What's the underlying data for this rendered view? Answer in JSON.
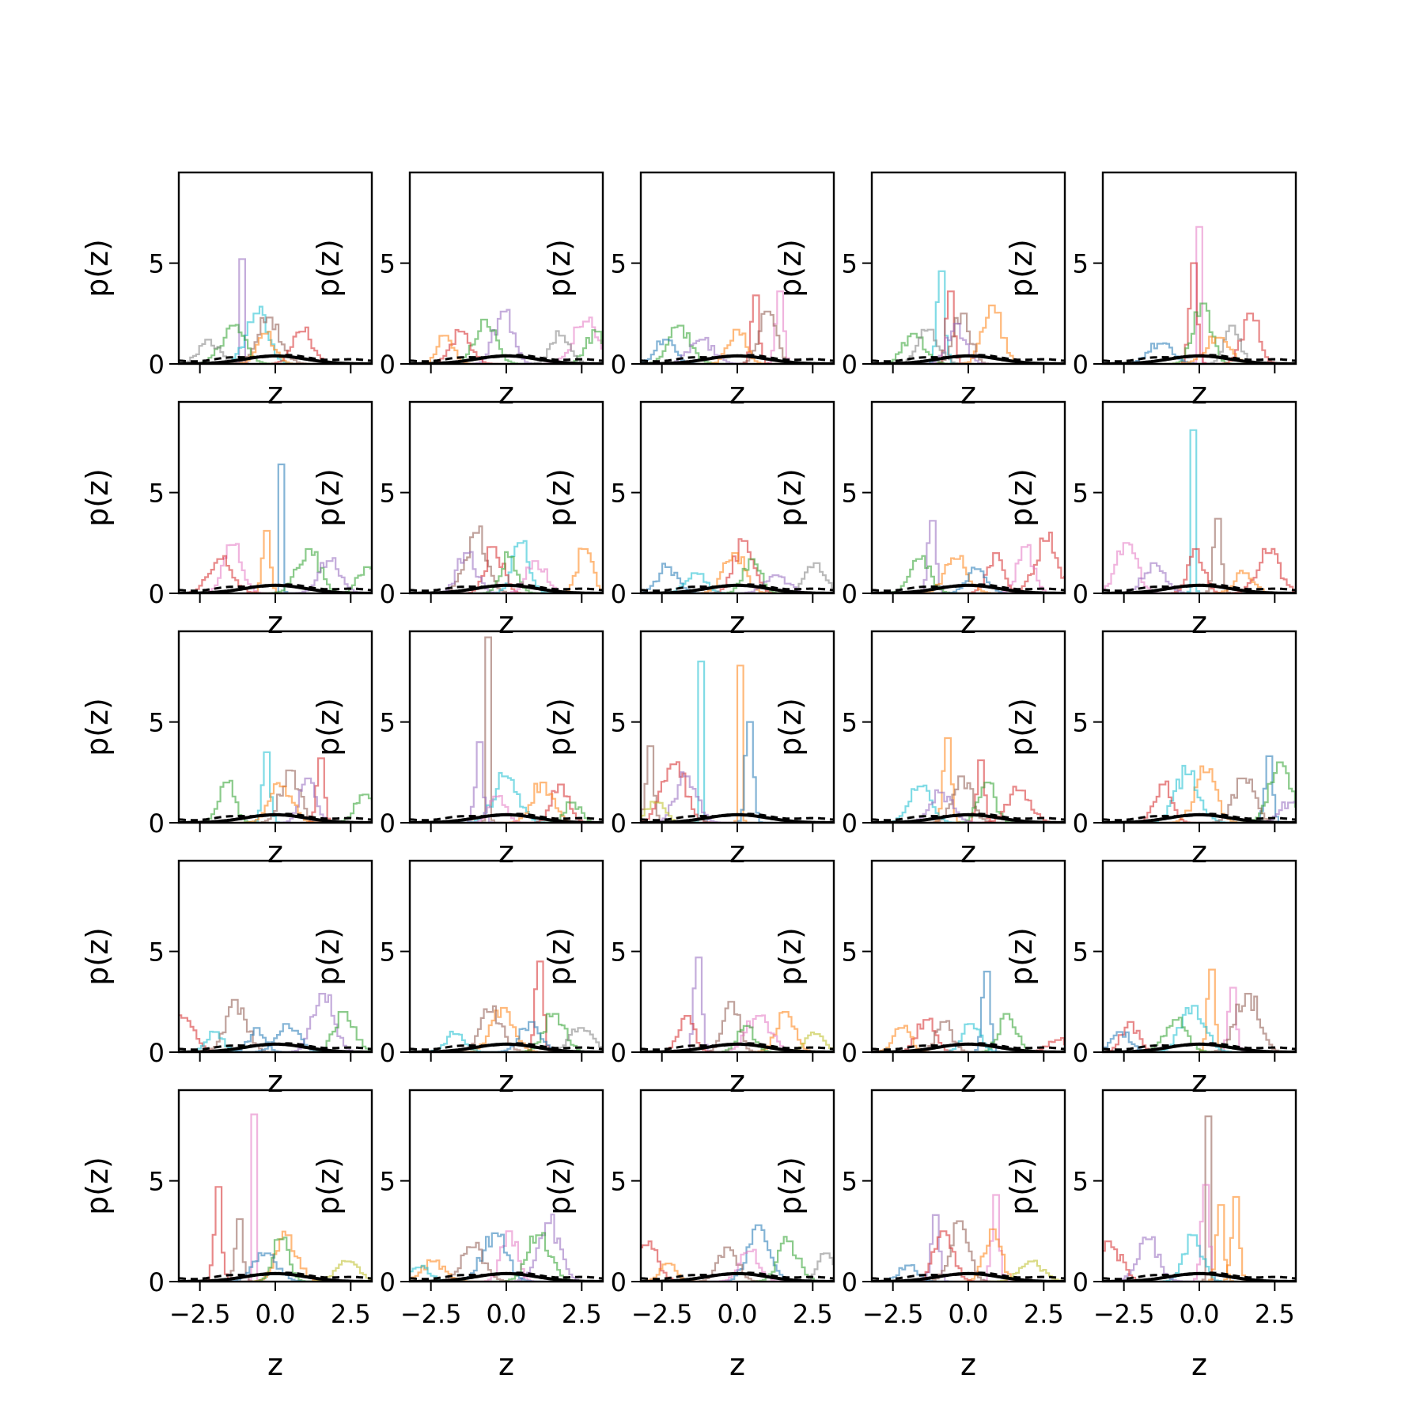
{
  "chart_data": {
    "type": "line",
    "layout": "5x5 grid of small-multiple histogram panels",
    "xlabel": "z",
    "ylabel": "p(z)",
    "xlim": [
      -3.2,
      3.2
    ],
    "ylim": [
      0,
      9.5
    ],
    "xticks": [
      -2.5,
      0.0,
      2.5
    ],
    "xtick_labels": [
      "−2.5",
      "0.0",
      "2.5"
    ],
    "yticks": [
      0,
      5
    ],
    "ytick_labels": [
      "0",
      "5"
    ],
    "grid": false,
    "legend": "none",
    "reference_curves": [
      {
        "style": "solid",
        "color": "#000000",
        "shape": "standard normal density",
        "peak_y": 0.4
      },
      {
        "style": "dashed",
        "color": "#000000",
        "shape": "mixture density",
        "peak_y": 0.4
      }
    ],
    "series_palette": [
      "#1f77b4",
      "#ff7f0e",
      "#2ca02c",
      "#d62728",
      "#9467bd",
      "#8c564b",
      "#e377c2",
      "#7f7f7f",
      "#bcbd22",
      "#17becf"
    ],
    "panels": [
      {
        "row": 0,
        "col": 0,
        "peaks": [
          {
            "c": "#9467bd",
            "x": -1.1,
            "y": 5.2
          },
          {
            "c": "#17becf",
            "x": -0.6,
            "y": 2.5
          },
          {
            "c": "#8c564b",
            "x": -0.2,
            "y": 2.3
          },
          {
            "c": "#d62728",
            "x": 0.9,
            "y": 1.6
          },
          {
            "c": "#2ca02c",
            "x": -1.4,
            "y": 1.9
          },
          {
            "c": "#7f7f7f",
            "x": -2.2,
            "y": 1.2
          },
          {
            "c": "#ff7f0e",
            "x": -0.3,
            "y": 1.5
          }
        ]
      },
      {
        "row": 0,
        "col": 1,
        "peaks": [
          {
            "c": "#9467bd",
            "x": -0.1,
            "y": 2.6
          },
          {
            "c": "#2ca02c",
            "x": -0.7,
            "y": 2.2
          },
          {
            "c": "#d62728",
            "x": -1.5,
            "y": 1.6
          },
          {
            "c": "#e377c2",
            "x": 2.6,
            "y": 2.1
          },
          {
            "c": "#ff7f0e",
            "x": -2.0,
            "y": 1.4
          },
          {
            "c": "#2ca02c",
            "x": 3.0,
            "y": 1.6
          },
          {
            "c": "#7f7f7f",
            "x": 1.8,
            "y": 1.4
          }
        ]
      },
      {
        "row": 0,
        "col": 2,
        "peaks": [
          {
            "c": "#e377c2",
            "x": 1.4,
            "y": 3.6
          },
          {
            "c": "#d62728",
            "x": 0.6,
            "y": 3.4
          },
          {
            "c": "#8c564b",
            "x": 1.0,
            "y": 2.6
          },
          {
            "c": "#2ca02c",
            "x": -1.9,
            "y": 1.9
          },
          {
            "c": "#1f77b4",
            "x": -2.4,
            "y": 1.2
          },
          {
            "c": "#ff7f0e",
            "x": 0.0,
            "y": 1.7
          },
          {
            "c": "#9467bd",
            "x": -1.2,
            "y": 1.2
          }
        ]
      },
      {
        "row": 0,
        "col": 3,
        "peaks": [
          {
            "c": "#17becf",
            "x": -0.9,
            "y": 4.6
          },
          {
            "c": "#d62728",
            "x": -0.6,
            "y": 3.6
          },
          {
            "c": "#ff7f0e",
            "x": 0.8,
            "y": 2.9
          },
          {
            "c": "#8c564b",
            "x": -0.2,
            "y": 2.5
          },
          {
            "c": "#2ca02c",
            "x": -1.8,
            "y": 1.5
          },
          {
            "c": "#9467bd",
            "x": -0.4,
            "y": 2.0
          },
          {
            "c": "#7f7f7f",
            "x": -1.3,
            "y": 1.7
          }
        ]
      },
      {
        "row": 0,
        "col": 4,
        "peaks": [
          {
            "c": "#e377c2",
            "x": 0.0,
            "y": 6.8
          },
          {
            "c": "#d62728",
            "x": -0.2,
            "y": 5.0
          },
          {
            "c": "#2ca02c",
            "x": 0.1,
            "y": 3.0
          },
          {
            "c": "#d62728",
            "x": 1.7,
            "y": 2.5
          },
          {
            "c": "#7f7f7f",
            "x": 1.1,
            "y": 1.9
          },
          {
            "c": "#1f77b4",
            "x": -1.3,
            "y": 1.0
          },
          {
            "c": "#ff7f0e",
            "x": 0.6,
            "y": 1.3
          }
        ]
      },
      {
        "row": 1,
        "col": 0,
        "peaks": [
          {
            "c": "#1f77b4",
            "x": 0.2,
            "y": 6.4
          },
          {
            "c": "#ff7f0e",
            "x": -0.3,
            "y": 3.1
          },
          {
            "c": "#e377c2",
            "x": -1.4,
            "y": 2.4
          },
          {
            "c": "#2ca02c",
            "x": 1.1,
            "y": 2.2
          },
          {
            "c": "#9467bd",
            "x": 1.8,
            "y": 1.6
          },
          {
            "c": "#d62728",
            "x": -1.8,
            "y": 1.7
          },
          {
            "c": "#2ca02c",
            "x": 3.0,
            "y": 1.3
          }
        ]
      },
      {
        "row": 1,
        "col": 1,
        "peaks": [
          {
            "c": "#8c564b",
            "x": -1.0,
            "y": 3.0
          },
          {
            "c": "#ff7f0e",
            "x": 2.6,
            "y": 2.2
          },
          {
            "c": "#17becf",
            "x": 0.5,
            "y": 2.5
          },
          {
            "c": "#d62728",
            "x": -0.4,
            "y": 2.3
          },
          {
            "c": "#9467bd",
            "x": -1.3,
            "y": 2.0
          },
          {
            "c": "#2ca02c",
            "x": 0.1,
            "y": 1.8
          },
          {
            "c": "#e377c2",
            "x": 1.0,
            "y": 1.6
          }
        ]
      },
      {
        "row": 1,
        "col": 2,
        "peaks": [
          {
            "c": "#d62728",
            "x": 0.2,
            "y": 2.6
          },
          {
            "c": "#ff7f0e",
            "x": -0.1,
            "y": 2.0
          },
          {
            "c": "#1f77b4",
            "x": -2.3,
            "y": 1.3
          },
          {
            "c": "#7f7f7f",
            "x": 2.6,
            "y": 1.5
          },
          {
            "c": "#17becf",
            "x": -1.4,
            "y": 1.0
          },
          {
            "c": "#2ca02c",
            "x": 0.5,
            "y": 1.7
          },
          {
            "c": "#9467bd",
            "x": 1.3,
            "y": 0.9
          }
        ]
      },
      {
        "row": 1,
        "col": 3,
        "peaks": [
          {
            "c": "#9467bd",
            "x": -1.2,
            "y": 3.6
          },
          {
            "c": "#d62728",
            "x": 2.6,
            "y": 2.6
          },
          {
            "c": "#e377c2",
            "x": 1.9,
            "y": 2.3
          },
          {
            "c": "#d62728",
            "x": 0.9,
            "y": 2.0
          },
          {
            "c": "#2ca02c",
            "x": -1.6,
            "y": 1.7
          },
          {
            "c": "#ff7f0e",
            "x": -0.4,
            "y": 1.7
          },
          {
            "c": "#1f77b4",
            "x": 0.3,
            "y": 1.2
          }
        ]
      },
      {
        "row": 1,
        "col": 4,
        "peaks": [
          {
            "c": "#17becf",
            "x": -0.2,
            "y": 8.1
          },
          {
            "c": "#8c564b",
            "x": 0.6,
            "y": 3.7
          },
          {
            "c": "#e377c2",
            "x": -2.4,
            "y": 2.5
          },
          {
            "c": "#d62728",
            "x": 2.3,
            "y": 2.0
          },
          {
            "c": "#d62728",
            "x": -0.1,
            "y": 2.2
          },
          {
            "c": "#ff7f0e",
            "x": 1.5,
            "y": 1.0
          },
          {
            "c": "#9467bd",
            "x": -1.5,
            "y": 1.5
          }
        ]
      },
      {
        "row": 2,
        "col": 0,
        "peaks": [
          {
            "c": "#17becf",
            "x": -0.3,
            "y": 3.5
          },
          {
            "c": "#d62728",
            "x": 1.5,
            "y": 3.2
          },
          {
            "c": "#8c564b",
            "x": 0.5,
            "y": 2.6
          },
          {
            "c": "#2ca02c",
            "x": -1.6,
            "y": 2.0
          },
          {
            "c": "#9467bd",
            "x": 1.1,
            "y": 2.2
          },
          {
            "c": "#2ca02c",
            "x": 3.0,
            "y": 1.4
          },
          {
            "c": "#ff7f0e",
            "x": 0.2,
            "y": 1.8
          }
        ]
      },
      {
        "row": 2,
        "col": 1,
        "peaks": [
          {
            "c": "#8c564b",
            "x": -0.6,
            "y": 9.2
          },
          {
            "c": "#9467bd",
            "x": -0.9,
            "y": 4.0
          },
          {
            "c": "#17becf",
            "x": 0.0,
            "y": 2.3
          },
          {
            "c": "#d62728",
            "x": 1.8,
            "y": 1.9
          },
          {
            "c": "#ff7f0e",
            "x": 1.2,
            "y": 2.0
          },
          {
            "c": "#2ca02c",
            "x": 2.2,
            "y": 1.0
          },
          {
            "c": "#e377c2",
            "x": -0.3,
            "y": 1.3
          }
        ]
      },
      {
        "row": 2,
        "col": 2,
        "peaks": [
          {
            "c": "#17becf",
            "x": -1.2,
            "y": 8.0
          },
          {
            "c": "#ff7f0e",
            "x": 0.1,
            "y": 7.8
          },
          {
            "c": "#1f77b4",
            "x": 0.4,
            "y": 5.0
          },
          {
            "c": "#8c564b",
            "x": -2.9,
            "y": 3.8
          },
          {
            "c": "#d62728",
            "x": -2.1,
            "y": 2.9
          },
          {
            "c": "#9467bd",
            "x": -1.7,
            "y": 2.3
          },
          {
            "c": "#bcbd22",
            "x": -2.7,
            "y": 1.0
          }
        ]
      },
      {
        "row": 2,
        "col": 3,
        "peaks": [
          {
            "c": "#ff7f0e",
            "x": -0.7,
            "y": 4.2
          },
          {
            "c": "#d62728",
            "x": 0.4,
            "y": 3.1
          },
          {
            "c": "#8c564b",
            "x": -0.2,
            "y": 2.3
          },
          {
            "c": "#17becf",
            "x": -1.6,
            "y": 1.8
          },
          {
            "c": "#2ca02c",
            "x": 0.6,
            "y": 2.0
          },
          {
            "c": "#d62728",
            "x": 1.7,
            "y": 1.6
          },
          {
            "c": "#9467bd",
            "x": -0.9,
            "y": 1.5
          }
        ]
      },
      {
        "row": 2,
        "col": 4,
        "peaks": [
          {
            "c": "#1f77b4",
            "x": 2.3,
            "y": 3.3
          },
          {
            "c": "#2ca02c",
            "x": 2.7,
            "y": 3.0
          },
          {
            "c": "#ff7f0e",
            "x": 0.2,
            "y": 2.5
          },
          {
            "c": "#17becf",
            "x": -0.4,
            "y": 2.4
          },
          {
            "c": "#8c564b",
            "x": 1.5,
            "y": 2.2
          },
          {
            "c": "#d62728",
            "x": -1.2,
            "y": 1.9
          },
          {
            "c": "#9467bd",
            "x": 3.0,
            "y": 1.0
          }
        ]
      },
      {
        "row": 3,
        "col": 0,
        "peaks": [
          {
            "c": "#8c564b",
            "x": -1.3,
            "y": 2.6
          },
          {
            "c": "#9467bd",
            "x": 1.6,
            "y": 2.9
          },
          {
            "c": "#2ca02c",
            "x": 2.3,
            "y": 2.0
          },
          {
            "c": "#d62728",
            "x": -3.0,
            "y": 1.7
          },
          {
            "c": "#1f77b4",
            "x": 0.4,
            "y": 1.4
          },
          {
            "c": "#17becf",
            "x": -2.0,
            "y": 1.0
          },
          {
            "c": "#1f77b4",
            "x": -0.6,
            "y": 1.2
          }
        ]
      },
      {
        "row": 3,
        "col": 1,
        "peaks": [
          {
            "c": "#d62728",
            "x": 1.1,
            "y": 4.5
          },
          {
            "c": "#ff7f0e",
            "x": -0.1,
            "y": 2.2
          },
          {
            "c": "#8c564b",
            "x": -0.5,
            "y": 2.0
          },
          {
            "c": "#2ca02c",
            "x": 1.6,
            "y": 1.9
          },
          {
            "c": "#1f77b4",
            "x": 0.8,
            "y": 1.5
          },
          {
            "c": "#7f7f7f",
            "x": 2.5,
            "y": 1.2
          },
          {
            "c": "#17becf",
            "x": -1.7,
            "y": 0.9
          }
        ]
      },
      {
        "row": 3,
        "col": 2,
        "peaks": [
          {
            "c": "#9467bd",
            "x": -1.3,
            "y": 4.7
          },
          {
            "c": "#8c564b",
            "x": -0.2,
            "y": 2.5
          },
          {
            "c": "#ff7f0e",
            "x": 1.6,
            "y": 2.0
          },
          {
            "c": "#d62728",
            "x": -1.7,
            "y": 1.8
          },
          {
            "c": "#e377c2",
            "x": 0.7,
            "y": 1.8
          },
          {
            "c": "#2ca02c",
            "x": 0.3,
            "y": 1.3
          },
          {
            "c": "#bcbd22",
            "x": 2.6,
            "y": 0.9
          }
        ]
      },
      {
        "row": 3,
        "col": 3,
        "peaks": [
          {
            "c": "#1f77b4",
            "x": 0.6,
            "y": 4.0
          },
          {
            "c": "#2ca02c",
            "x": 1.3,
            "y": 1.9
          },
          {
            "c": "#d62728",
            "x": -1.4,
            "y": 1.6
          },
          {
            "c": "#8c564b",
            "x": -0.8,
            "y": 1.5
          },
          {
            "c": "#ff7f0e",
            "x": -2.2,
            "y": 1.2
          },
          {
            "c": "#17becf",
            "x": 0.1,
            "y": 1.4
          },
          {
            "c": "#d62728",
            "x": 3.0,
            "y": 0.6
          }
        ]
      },
      {
        "row": 3,
        "col": 4,
        "peaks": [
          {
            "c": "#ff7f0e",
            "x": 0.4,
            "y": 4.1
          },
          {
            "c": "#e377c2",
            "x": 1.1,
            "y": 3.2
          },
          {
            "c": "#8c564b",
            "x": 1.6,
            "y": 2.9
          },
          {
            "c": "#17becf",
            "x": -0.2,
            "y": 2.3
          },
          {
            "c": "#d62728",
            "x": -2.3,
            "y": 1.5
          },
          {
            "c": "#2ca02c",
            "x": -0.8,
            "y": 1.6
          },
          {
            "c": "#1f77b4",
            "x": -2.6,
            "y": 1.0
          }
        ]
      },
      {
        "row": 4,
        "col": 0,
        "peaks": [
          {
            "c": "#e377c2",
            "x": -0.7,
            "y": 8.3
          },
          {
            "c": "#d62728",
            "x": -1.9,
            "y": 4.7
          },
          {
            "c": "#8c564b",
            "x": -1.2,
            "y": 3.1
          },
          {
            "c": "#ff7f0e",
            "x": 0.4,
            "y": 2.3
          },
          {
            "c": "#2ca02c",
            "x": 0.2,
            "y": 2.1
          },
          {
            "c": "#bcbd22",
            "x": 2.4,
            "y": 1.0
          },
          {
            "c": "#1f77b4",
            "x": -0.3,
            "y": 1.4
          }
        ]
      },
      {
        "row": 4,
        "col": 1,
        "peaks": [
          {
            "c": "#9467bd",
            "x": 1.4,
            "y": 2.9
          },
          {
            "c": "#e377c2",
            "x": 0.1,
            "y": 2.5
          },
          {
            "c": "#1f77b4",
            "x": -0.4,
            "y": 2.4
          },
          {
            "c": "#2ca02c",
            "x": 1.1,
            "y": 2.3
          },
          {
            "c": "#8c564b",
            "x": -1.1,
            "y": 1.7
          },
          {
            "c": "#ff7f0e",
            "x": -2.4,
            "y": 1.0
          },
          {
            "c": "#17becf",
            "x": -2.9,
            "y": 0.7
          }
        ]
      },
      {
        "row": 4,
        "col": 2,
        "peaks": [
          {
            "c": "#1f77b4",
            "x": 0.7,
            "y": 2.8
          },
          {
            "c": "#2ca02c",
            "x": 1.7,
            "y": 2.0
          },
          {
            "c": "#8c564b",
            "x": -0.3,
            "y": 1.7
          },
          {
            "c": "#d62728",
            "x": -3.0,
            "y": 1.8
          },
          {
            "c": "#e377c2",
            "x": 0.4,
            "y": 1.5
          },
          {
            "c": "#7f7f7f",
            "x": 3.0,
            "y": 1.4
          },
          {
            "c": "#ff7f0e",
            "x": -2.3,
            "y": 0.9
          }
        ]
      },
      {
        "row": 4,
        "col": 3,
        "peaks": [
          {
            "c": "#e377c2",
            "x": 0.9,
            "y": 4.3
          },
          {
            "c": "#9467bd",
            "x": -1.1,
            "y": 3.3
          },
          {
            "c": "#8c564b",
            "x": -0.3,
            "y": 3.0
          },
          {
            "c": "#ff7f0e",
            "x": 0.8,
            "y": 2.6
          },
          {
            "c": "#d62728",
            "x": -0.8,
            "y": 2.5
          },
          {
            "c": "#bcbd22",
            "x": 2.1,
            "y": 1.0
          },
          {
            "c": "#1f77b4",
            "x": -2.0,
            "y": 0.8
          }
        ]
      },
      {
        "row": 4,
        "col": 4,
        "peaks": [
          {
            "c": "#8c564b",
            "x": 0.3,
            "y": 8.2
          },
          {
            "c": "#e377c2",
            "x": 0.2,
            "y": 4.8
          },
          {
            "c": "#ff7f0e",
            "x": 1.2,
            "y": 4.2
          },
          {
            "c": "#ff7f0e",
            "x": 0.7,
            "y": 3.8
          },
          {
            "c": "#17becf",
            "x": -0.2,
            "y": 2.3
          },
          {
            "c": "#9467bd",
            "x": -1.7,
            "y": 2.1
          },
          {
            "c": "#d62728",
            "x": -3.0,
            "y": 2.0
          }
        ]
      }
    ]
  }
}
